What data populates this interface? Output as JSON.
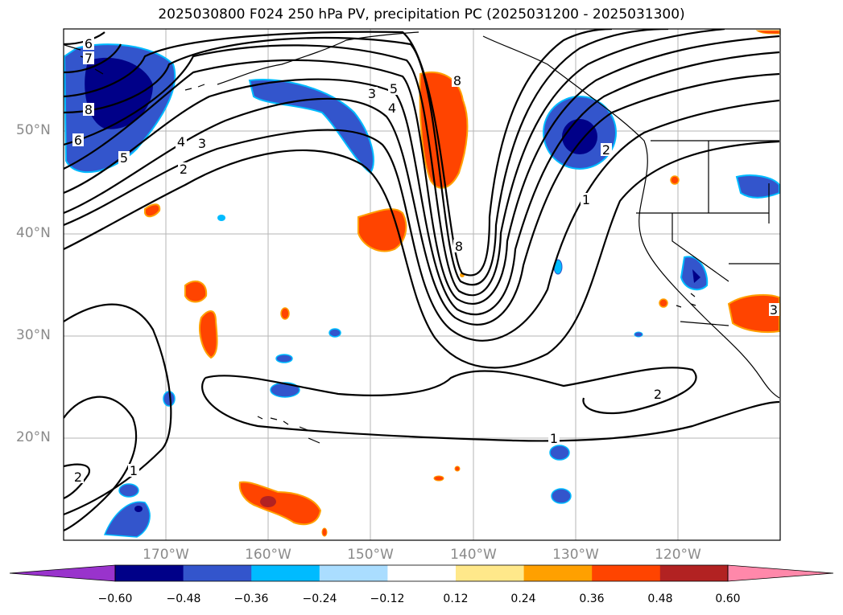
{
  "title": "2025030800 F024 250 hPa PV, precipitation PC (2025031200 - 2025031300)",
  "lat_labels": [
    "50°N",
    "40°N",
    "30°N",
    "20°N"
  ],
  "lon_labels": [
    "170°W",
    "160°W",
    "150°W",
    "140°W",
    "130°W",
    "120°W"
  ],
  "contour_labels": [
    "6",
    "7",
    "8",
    "6",
    "5",
    "4",
    "3",
    "2",
    "3",
    "5",
    "4",
    "8",
    "8",
    "1",
    "2",
    "1",
    "2",
    "1",
    "2",
    "3"
  ],
  "colorbar": {
    "ticks": [
      "−0.60",
      "−0.48",
      "−0.36",
      "−0.24",
      "−0.12",
      "0.12",
      "0.24",
      "0.36",
      "0.48",
      "0.60"
    ],
    "colors": [
      "#9933cc",
      "#000088",
      "#3355cc",
      "#00bbff",
      "#aaddff",
      "#ffffff",
      "#ffe88a",
      "#ffa000",
      "#ff4400",
      "#b22222",
      "#ff88aa"
    ]
  }
}
